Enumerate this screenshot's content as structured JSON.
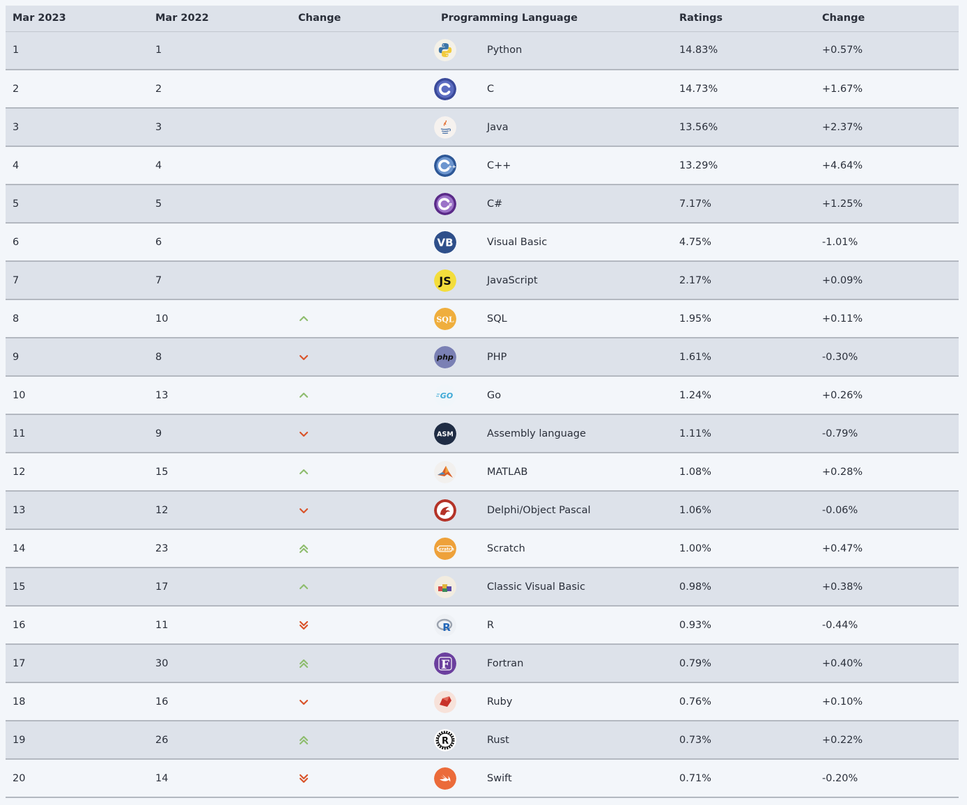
{
  "headers": {
    "current_month": "Mar 2023",
    "prev_month": "Mar 2022",
    "change_icon": "Change",
    "language": "Programming Language",
    "ratings": "Ratings",
    "change": "Change"
  },
  "colors": {
    "up": "#8fbd6f",
    "down": "#d9542b"
  },
  "rows": [
    {
      "rank": "1",
      "prev": "1",
      "trend": "none",
      "name": "Python",
      "rating": "14.83%",
      "change": "+0.57%",
      "icon": "python-icon"
    },
    {
      "rank": "2",
      "prev": "2",
      "trend": "none",
      "name": "C",
      "rating": "14.73%",
      "change": "+1.67%",
      "icon": "c-icon"
    },
    {
      "rank": "3",
      "prev": "3",
      "trend": "none",
      "name": "Java",
      "rating": "13.56%",
      "change": "+2.37%",
      "icon": "java-icon"
    },
    {
      "rank": "4",
      "prev": "4",
      "trend": "none",
      "name": "C++",
      "rating": "13.29%",
      "change": "+4.64%",
      "icon": "cpp-icon"
    },
    {
      "rank": "5",
      "prev": "5",
      "trend": "none",
      "name": "C#",
      "rating": "7.17%",
      "change": "+1.25%",
      "icon": "csharp-icon"
    },
    {
      "rank": "6",
      "prev": "6",
      "trend": "none",
      "name": "Visual Basic",
      "rating": "4.75%",
      "change": "-1.01%",
      "icon": "visual-basic-icon"
    },
    {
      "rank": "7",
      "prev": "7",
      "trend": "none",
      "name": "JavaScript",
      "rating": "2.17%",
      "change": "+0.09%",
      "icon": "javascript-icon"
    },
    {
      "rank": "8",
      "prev": "10",
      "trend": "up",
      "name": "SQL",
      "rating": "1.95%",
      "change": "+0.11%",
      "icon": "sql-icon"
    },
    {
      "rank": "9",
      "prev": "8",
      "trend": "down",
      "name": "PHP",
      "rating": "1.61%",
      "change": "-0.30%",
      "icon": "php-icon"
    },
    {
      "rank": "10",
      "prev": "13",
      "trend": "up",
      "name": "Go",
      "rating": "1.24%",
      "change": "+0.26%",
      "icon": "go-icon"
    },
    {
      "rank": "11",
      "prev": "9",
      "trend": "down",
      "name": "Assembly language",
      "rating": "1.11%",
      "change": "-0.79%",
      "icon": "assembly-icon"
    },
    {
      "rank": "12",
      "prev": "15",
      "trend": "up",
      "name": "MATLAB",
      "rating": "1.08%",
      "change": "+0.28%",
      "icon": "matlab-icon"
    },
    {
      "rank": "13",
      "prev": "12",
      "trend": "down",
      "name": "Delphi/Object Pascal",
      "rating": "1.06%",
      "change": "-0.06%",
      "icon": "delphi-icon"
    },
    {
      "rank": "14",
      "prev": "23",
      "trend": "up2",
      "name": "Scratch",
      "rating": "1.00%",
      "change": "+0.47%",
      "icon": "scratch-icon"
    },
    {
      "rank": "15",
      "prev": "17",
      "trend": "up",
      "name": "Classic Visual Basic",
      "rating": "0.98%",
      "change": "+0.38%",
      "icon": "classic-vb-icon"
    },
    {
      "rank": "16",
      "prev": "11",
      "trend": "down2",
      "name": "R",
      "rating": "0.93%",
      "change": "-0.44%",
      "icon": "r-icon"
    },
    {
      "rank": "17",
      "prev": "30",
      "trend": "up2",
      "name": "Fortran",
      "rating": "0.79%",
      "change": "+0.40%",
      "icon": "fortran-icon"
    },
    {
      "rank": "18",
      "prev": "16",
      "trend": "down",
      "name": "Ruby",
      "rating": "0.76%",
      "change": "+0.10%",
      "icon": "ruby-icon"
    },
    {
      "rank": "19",
      "prev": "26",
      "trend": "up2",
      "name": "Rust",
      "rating": "0.73%",
      "change": "+0.22%",
      "icon": "rust-icon"
    },
    {
      "rank": "20",
      "prev": "14",
      "trend": "down2",
      "name": "Swift",
      "rating": "0.71%",
      "change": "-0.20%",
      "icon": "swift-icon"
    }
  ]
}
